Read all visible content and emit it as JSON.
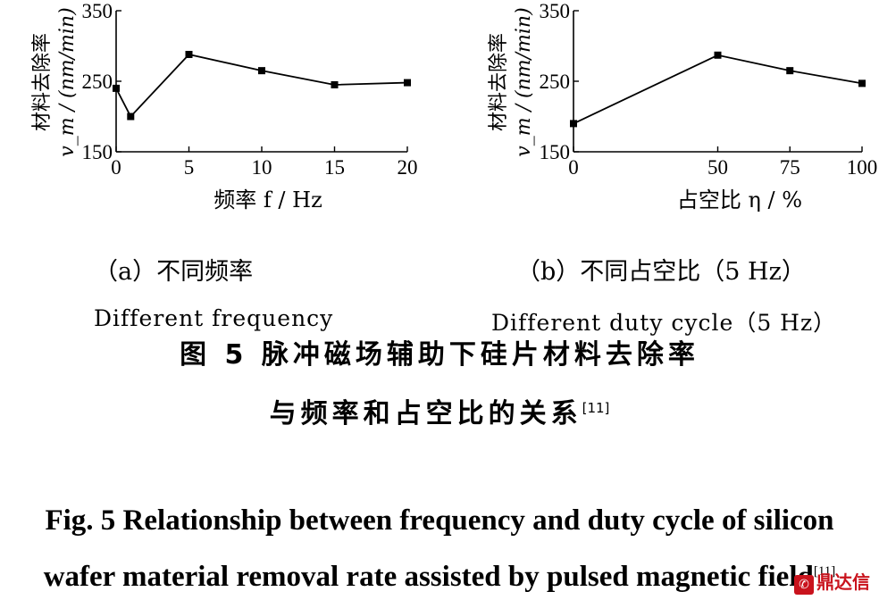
{
  "chart_data": [
    {
      "type": "line",
      "x": [
        0,
        1,
        5,
        10,
        15,
        20
      ],
      "values": [
        240,
        200,
        288,
        265,
        245,
        248
      ],
      "xticks": [
        "0",
        "5",
        "10",
        "15",
        "20"
      ],
      "xtick_values": [
        0,
        5,
        10,
        15,
        20
      ],
      "yticks": [
        "150",
        "250",
        "350"
      ],
      "ytick_values": [
        150,
        250,
        350
      ],
      "xlim": [
        0,
        20
      ],
      "ylim": [
        150,
        350
      ],
      "xlabel": "频率 f / Hz",
      "ylabel": "材料去除率 v_m / (nm/min)",
      "caption_cn": "（a）不同频率",
      "caption_en": "Different frequency"
    },
    {
      "type": "line",
      "x": [
        0,
        50,
        75,
        100
      ],
      "values": [
        190,
        287,
        265,
        247
      ],
      "xticks": [
        "0",
        "50",
        "75",
        "100"
      ],
      "xtick_values": [
        0,
        50,
        75,
        100
      ],
      "yticks": [
        "150",
        "250",
        "350"
      ],
      "ytick_values": [
        150,
        250,
        350
      ],
      "xlim": [
        0,
        100
      ],
      "ylim": [
        150,
        350
      ],
      "xlabel": "占空比 η / %",
      "ylabel": "材料去除率 v_m / (nm/min)",
      "caption_cn": "（b）不同占空比（5 Hz）",
      "caption_en": "Different duty cycle（5 Hz）"
    }
  ],
  "figure": {
    "caption_cn_line1": "图 5  脉冲磁场辅助下硅片材料去除率",
    "caption_cn_line2": "与频率和占空比的关系",
    "caption_en_line1": "Fig. 5 Relationship between frequency and duty cycle of silicon",
    "caption_en_line2": "wafer material removal rate assisted by pulsed magnetic field",
    "ref": "[11]"
  },
  "watermark": {
    "text": "鼎达信",
    "icon": "logo-icon"
  }
}
